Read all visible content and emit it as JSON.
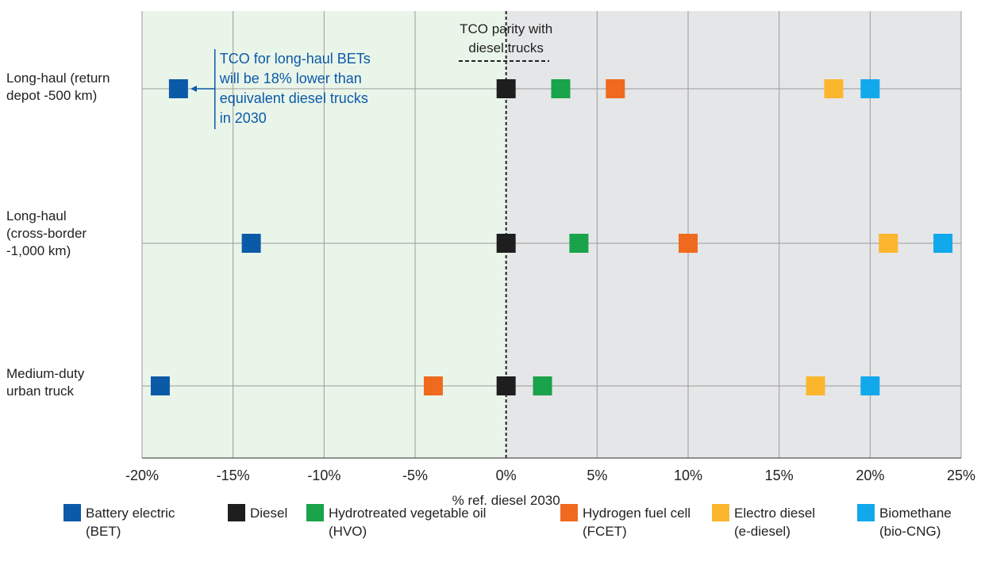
{
  "chart_data": {
    "type": "scatter",
    "xlabel": "% ref. diesel 2030",
    "xlim": [
      -20,
      25
    ],
    "x_ticks": [
      "-20%",
      "-15%",
      "-10%",
      "-5%",
      "0%",
      "5%",
      "10%",
      "15%",
      "20%",
      "25%"
    ],
    "x_tick_values": [
      -20,
      -15,
      -10,
      -5,
      0,
      5,
      10,
      15,
      20,
      25
    ],
    "categories": [
      "Long-haul (return depot -500 km)",
      "Long-haul (cross-border -1,000 km)",
      "Medium-duty urban truck"
    ],
    "category_lines": [
      [
        "Long-haul (return",
        "depot -500 km)"
      ],
      [
        "Long-haul",
        "(cross-border",
        "-1,000 km)"
      ],
      [
        "Medium-duty",
        "urban truck"
      ]
    ],
    "series": [
      {
        "name": "Battery electric (BET)",
        "legend_lines": [
          "Battery electric",
          "(BET)"
        ],
        "color": "#0b5aa8",
        "values": [
          -18,
          -14,
          -19
        ]
      },
      {
        "name": "Diesel",
        "legend_lines": [
          "Diesel"
        ],
        "color": "#1e1e1e",
        "values": [
          0,
          0,
          0
        ]
      },
      {
        "name": "Hydrotreated vegetable oil (HVO)",
        "legend_lines": [
          "Hydrotreated vegetable oil",
          "(HVO)"
        ],
        "color": "#19a34a",
        "values": [
          3,
          4,
          2
        ]
      },
      {
        "name": "Hydrogen fuel cell (FCET)",
        "legend_lines": [
          "Hydrogen fuel cell",
          "(FCET)"
        ],
        "color": "#ef6a1f",
        "values": [
          6,
          10,
          -4
        ]
      },
      {
        "name": "Electro diesel (e-diesel)",
        "legend_lines": [
          "Electro diesel",
          "(e-diesel)"
        ],
        "color": "#fbb62d",
        "values": [
          18,
          21,
          17
        ]
      },
      {
        "name": "Biomethane (bio-CNG)",
        "legend_lines": [
          "Biomethane",
          "(bio-CNG)"
        ],
        "color": "#12a8ec",
        "values": [
          20,
          24,
          20
        ]
      }
    ],
    "annotations": {
      "parity": {
        "lines": [
          "TCO parity with",
          "diesel trucks"
        ],
        "x": 0
      },
      "bet_note": {
        "lines": [
          "TCO for long-haul BETs",
          "will be 18% lower than",
          "equivalent diesel trucks",
          "in 2030"
        ],
        "color": "#0b5aa8",
        "x": -16
      }
    },
    "regions": {
      "negative_color": "#eaf5ea",
      "positive_color": "#e5e6e8"
    },
    "grid": true,
    "legend_position": "bottom"
  }
}
